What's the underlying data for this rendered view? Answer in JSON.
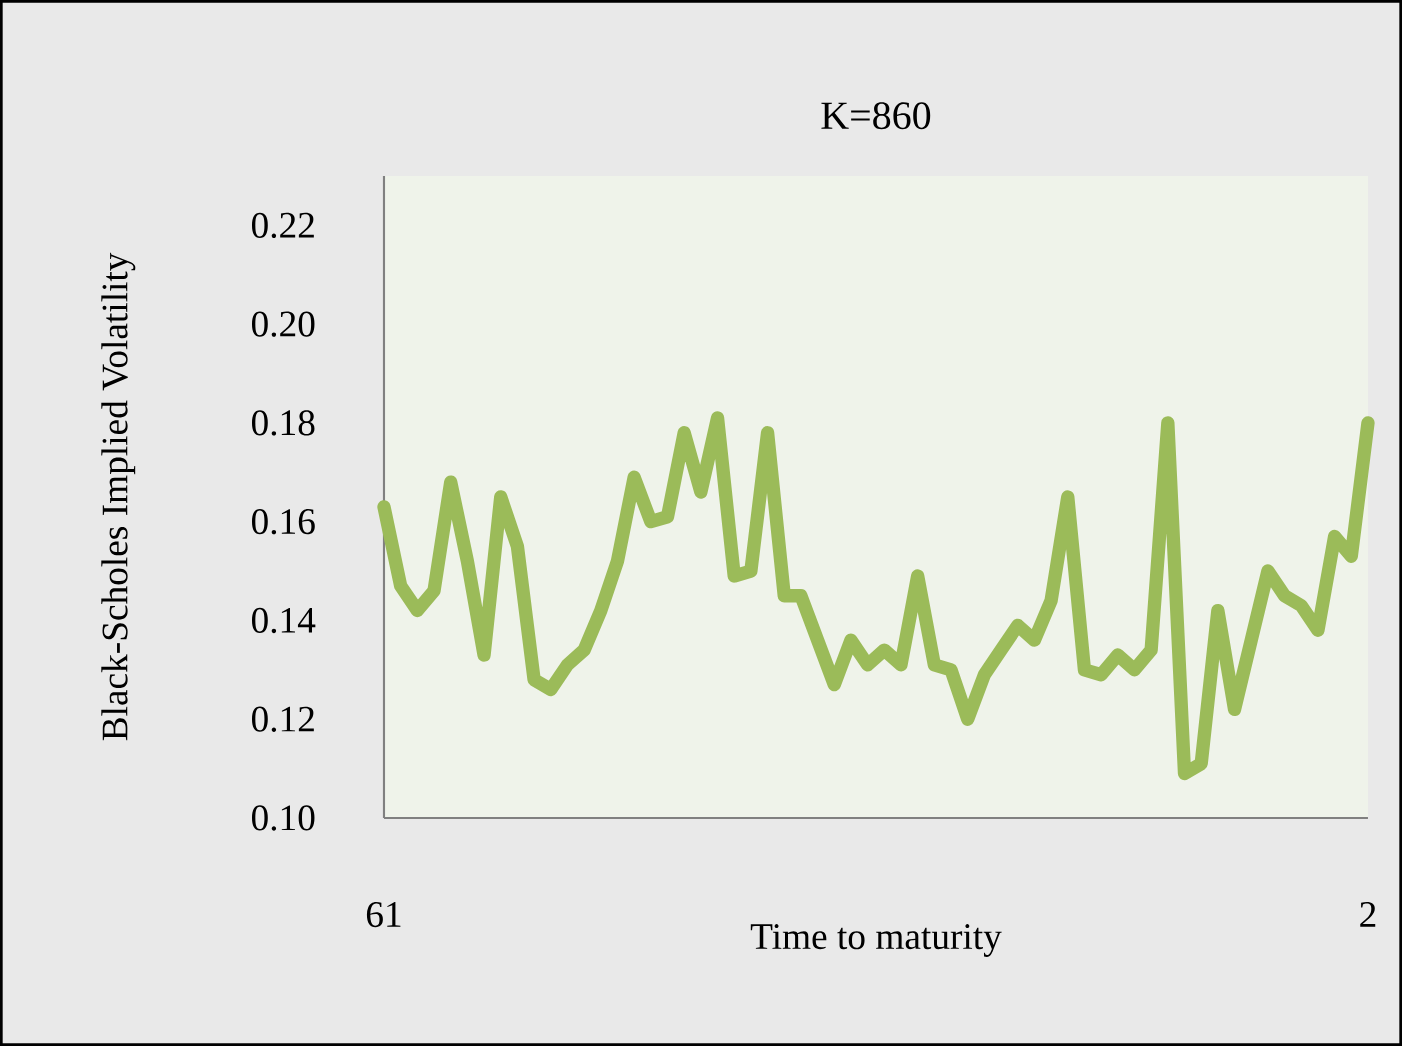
{
  "chart_data": {
    "type": "line",
    "title": "K=860",
    "xlabel": "Time to maturity",
    "ylabel": "Black-Scholes Implied Volatility",
    "x": [
      61,
      60,
      59,
      58,
      57,
      56,
      55,
      54,
      53,
      52,
      51,
      50,
      49,
      48,
      47,
      46,
      45,
      44,
      43,
      42,
      41,
      40,
      39,
      38,
      37,
      36,
      35,
      34,
      33,
      32,
      31,
      30,
      29,
      28,
      27,
      26,
      25,
      24,
      23,
      22,
      21,
      20,
      19,
      18,
      17,
      16,
      15,
      14,
      13,
      12,
      11,
      10,
      9,
      8,
      7,
      6,
      5,
      4,
      3,
      2
    ],
    "series": [
      {
        "color": "#9bbb59",
        "values": [
          0.163,
          0.147,
          0.142,
          0.146,
          0.168,
          0.152,
          0.133,
          0.165,
          0.155,
          0.128,
          0.126,
          0.131,
          0.134,
          0.142,
          0.152,
          0.169,
          0.16,
          0.161,
          0.178,
          0.166,
          0.181,
          0.149,
          0.15,
          0.178,
          0.145,
          0.145,
          0.136,
          0.127,
          0.136,
          0.131,
          0.134,
          0.131,
          0.149,
          0.131,
          0.13,
          0.12,
          0.129,
          0.134,
          0.139,
          0.136,
          0.144,
          0.165,
          0.13,
          0.129,
          0.133,
          0.13,
          0.134,
          0.18,
          0.109,
          0.111,
          0.142,
          0.122,
          0.136,
          0.15,
          0.145,
          0.143,
          0.138,
          0.157,
          0.153,
          0.18
        ]
      }
    ],
    "xlim": [
      61,
      2
    ],
    "xticks": [
      61,
      2
    ],
    "ylim": [
      0.1,
      0.23
    ],
    "yticks": [
      {
        "value": 0.1,
        "label": "0.10"
      },
      {
        "value": 0.12,
        "label": "0.12"
      },
      {
        "value": 0.14,
        "label": "0.14"
      },
      {
        "value": 0.16,
        "label": "0.16"
      },
      {
        "value": 0.18,
        "label": "0.18"
      },
      {
        "value": 0.2,
        "label": "0.20"
      },
      {
        "value": 0.22,
        "label": "0.22"
      }
    ]
  }
}
